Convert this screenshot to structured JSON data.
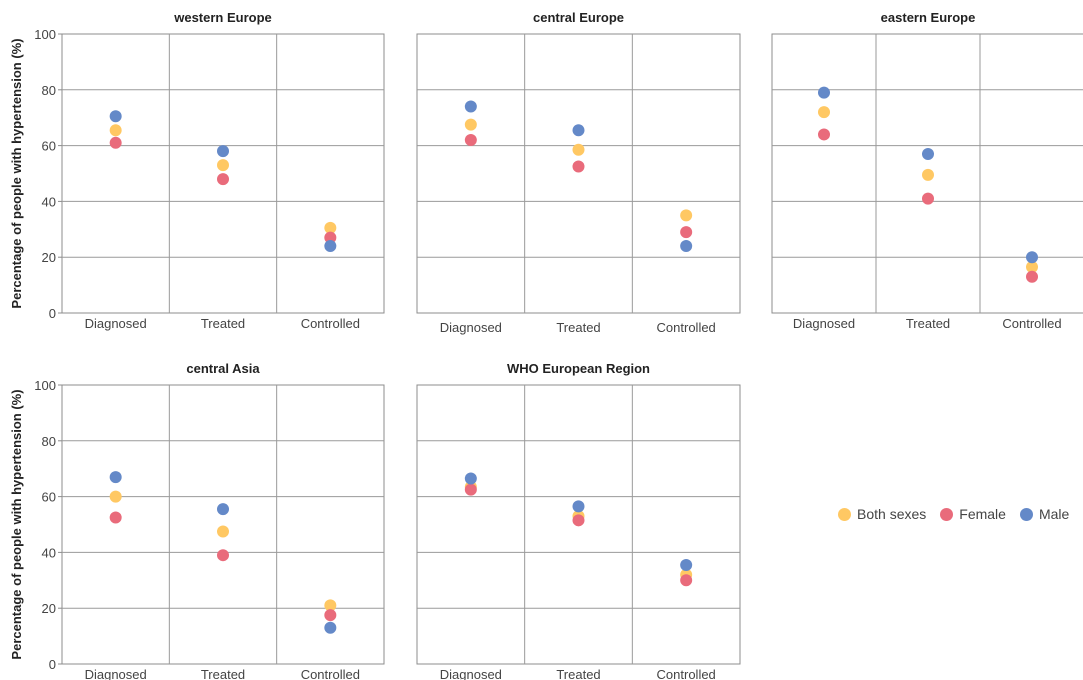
{
  "chart_data": {
    "type": "scatter",
    "ylabel": "Percentage of people with hypertension (%)",
    "ylim": [
      0,
      100
    ],
    "yticks": [
      "0",
      "20",
      "40",
      "60",
      "80",
      "100"
    ],
    "categories": [
      "Diagnosed",
      "Treated",
      "Controlled"
    ],
    "grid": true,
    "legend_position": "right",
    "series_meta": [
      {
        "name": "Both sexes",
        "color": "#ffc863"
      },
      {
        "name": "Female",
        "color": "#e96b7b"
      },
      {
        "name": "Male",
        "color": "#6489c8"
      }
    ],
    "panels": [
      {
        "title": "western Europe",
        "values": {
          "Both sexes": [
            65.5,
            53,
            30.5
          ],
          "Female": [
            61,
            48,
            27
          ],
          "Male": [
            70.5,
            58,
            24
          ]
        }
      },
      {
        "title": "central Europe",
        "values": {
          "Both sexes": [
            67.5,
            58.5,
            35
          ],
          "Female": [
            62,
            52.5,
            29
          ],
          "Male": [
            74,
            65.5,
            24
          ]
        }
      },
      {
        "title": "eastern Europe",
        "values": {
          "Both sexes": [
            72,
            49.5,
            16.5
          ],
          "Female": [
            64,
            41,
            13
          ],
          "Male": [
            79,
            57,
            20
          ]
        }
      },
      {
        "title": "central Asia",
        "values": {
          "Both sexes": [
            60,
            47.5,
            21
          ],
          "Female": [
            52.5,
            39,
            17.5
          ],
          "Male": [
            67,
            55.5,
            13
          ]
        }
      },
      {
        "title": "WHO European Region",
        "values": {
          "Both sexes": [
            63.5,
            53,
            32
          ],
          "Female": [
            62.5,
            51.5,
            30
          ],
          "Male": [
            66.5,
            56.5,
            35.5
          ]
        }
      }
    ]
  }
}
